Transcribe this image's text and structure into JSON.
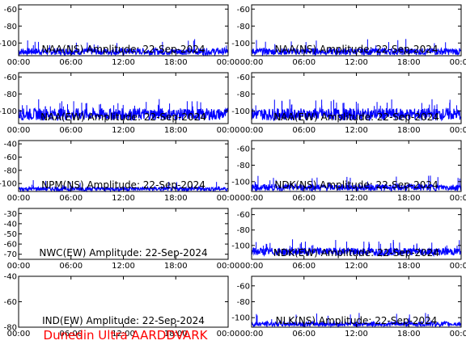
{
  "footer": "Dunedin Ultra AARDDVARK",
  "colors": {
    "trace": "#0000ff",
    "axes": "#000000",
    "footer": "#ff0000",
    "background": "#ffffff"
  },
  "x_ticks": [
    "00:00",
    "06:00",
    "12:00",
    "18:00",
    "00:00"
  ],
  "chart_data": [
    {
      "type": "line",
      "title": "NAA(NS) Amplitude: 22-Sep-2024",
      "xlabel": "",
      "ylabel": "",
      "yticks": [
        -100,
        -80,
        -60
      ],
      "ylim": [
        -115,
        -55
      ],
      "baseline": -110,
      "spread": 4,
      "spikes": 18
    },
    {
      "type": "line",
      "title": "NAA(NS) Amplitude: 22-Sep-2024",
      "xlabel": "",
      "ylabel": "",
      "yticks": [
        -100,
        -80,
        -60
      ],
      "ylim": [
        -115,
        -55
      ],
      "baseline": -110,
      "spread": 4,
      "spikes": 14
    },
    {
      "type": "line",
      "title": "NAA(EW) Amplitude: 22-Sep-2024",
      "xlabel": "",
      "ylabel": "",
      "yticks": [
        -100,
        -80,
        -60
      ],
      "ylim": [
        -115,
        -55
      ],
      "baseline": -104,
      "spread": 7,
      "spikes": 30
    },
    {
      "type": "line",
      "title": "NAA(EW) Amplitude: 22-Sep-2024",
      "xlabel": "",
      "ylabel": "",
      "yticks": [
        -100,
        -80,
        -60
      ],
      "ylim": [
        -115,
        -55
      ],
      "baseline": -104,
      "spread": 7,
      "spikes": 30
    },
    {
      "type": "line",
      "title": "NPM(NS) Amplitude: 22-Sep-2024",
      "xlabel": "",
      "ylabel": "",
      "yticks": [
        -100,
        -80,
        -60,
        -40
      ],
      "ylim": [
        -112,
        -35
      ],
      "baseline": -108,
      "spread": 3,
      "spikes": 10
    },
    {
      "type": "line",
      "title": "NDK(NS) Amplitude: 22-Sep-2024",
      "xlabel": "",
      "ylabel": "",
      "yticks": [
        -100,
        -80,
        -60
      ],
      "ylim": [
        -112,
        -50
      ],
      "baseline": -107,
      "spread": 4,
      "spikes": 18
    },
    {
      "type": "line",
      "title": "NWC(EW) Amplitude: 22-Sep-2024",
      "xlabel": "",
      "ylabel": "",
      "yticks": [
        -70,
        -60,
        -50,
        -40,
        -30
      ],
      "ylim": [
        -75,
        -25
      ],
      "baseline": null,
      "spread": 0,
      "spikes": 0
    },
    {
      "type": "line",
      "title": "NDK(EW) Amplitude: 22-Sep-2024",
      "xlabel": "",
      "ylabel": "",
      "yticks": [
        -100,
        -80,
        -60
      ],
      "ylim": [
        -118,
        -52
      ],
      "baseline": -108,
      "spread": 5,
      "spikes": 30
    },
    {
      "type": "line",
      "title": "IND(EW) Amplitude: 22-Sep-2024",
      "xlabel": "",
      "ylabel": "",
      "yticks": [
        -80,
        -60,
        -40
      ],
      "ylim": [
        -80,
        -40
      ],
      "baseline": null,
      "spread": 0,
      "spikes": 0
    },
    {
      "type": "line",
      "title": "NLK(NS) Amplitude: 22-Sep-2024",
      "xlabel": "",
      "ylabel": "",
      "yticks": [
        -100,
        -80,
        -60
      ],
      "ylim": [
        -112,
        -48
      ],
      "baseline": -108,
      "spread": 3,
      "spikes": 14
    }
  ]
}
